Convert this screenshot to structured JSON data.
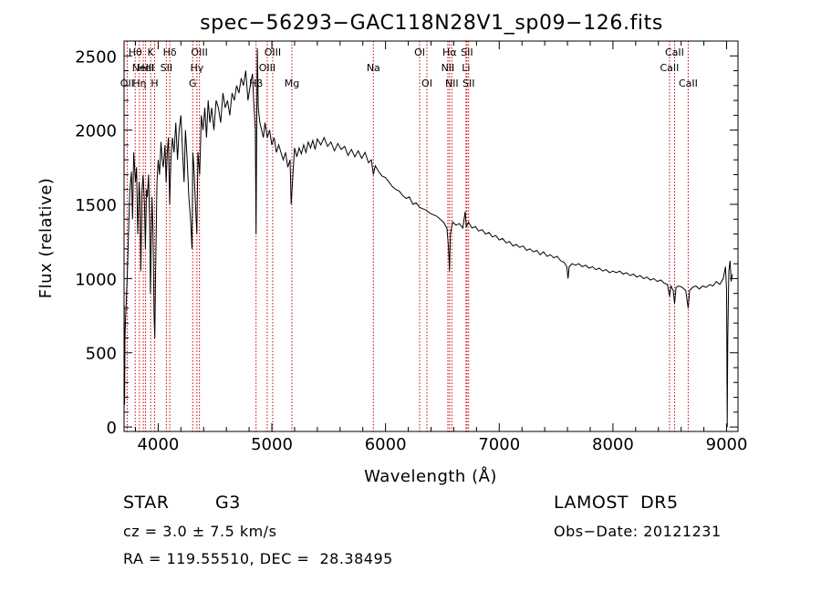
{
  "chart_data": {
    "type": "line",
    "title": "spec−56293−GAC118N28V1_sp09−126.fits",
    "xlabel": "Wavelength (Å)",
    "ylabel": "Flux (relative)",
    "xlim": [
      3700,
      9100
    ],
    "ylim": [
      -30,
      2600
    ],
    "xticks": [
      4000,
      5000,
      6000,
      7000,
      8000,
      9000
    ],
    "yticks": [
      0,
      500,
      1000,
      1500,
      2000,
      2500
    ],
    "grid": false,
    "series": [
      {
        "values": [
          [
            3700,
            0
          ],
          [
            3702,
            820
          ],
          [
            3705,
            150
          ],
          [
            3708,
            600
          ],
          [
            3712,
            700
          ],
          [
            3730,
            1050
          ],
          [
            3750,
            1580
          ],
          [
            3765,
            1720
          ],
          [
            3775,
            1400
          ],
          [
            3785,
            1850
          ],
          [
            3800,
            1650
          ],
          [
            3810,
            1750
          ],
          [
            3820,
            1300
          ],
          [
            3832,
            1650
          ],
          [
            3840,
            1550
          ],
          [
            3848,
            1050
          ],
          [
            3858,
            1600
          ],
          [
            3868,
            1700
          ],
          [
            3880,
            1500
          ],
          [
            3888,
            1200
          ],
          [
            3897,
            1600
          ],
          [
            3905,
            1550
          ],
          [
            3915,
            1700
          ],
          [
            3925,
            1400
          ],
          [
            3932,
            900
          ],
          [
            3938,
            1200
          ],
          [
            3946,
            1550
          ],
          [
            3955,
            1300
          ],
          [
            3964,
            750
          ],
          [
            3970,
            600
          ],
          [
            3978,
            1050
          ],
          [
            3990,
            1650
          ],
          [
            4000,
            1800
          ],
          [
            4012,
            1700
          ],
          [
            4025,
            1920
          ],
          [
            4035,
            1800
          ],
          [
            4045,
            1750
          ],
          [
            4060,
            1900
          ],
          [
            4070,
            1650
          ],
          [
            4080,
            1850
          ],
          [
            4090,
            1950
          ],
          [
            4101,
            1500
          ],
          [
            4112,
            1800
          ],
          [
            4125,
            1950
          ],
          [
            4140,
            1850
          ],
          [
            4155,
            2050
          ],
          [
            4170,
            1800
          ],
          [
            4185,
            2000
          ],
          [
            4200,
            2100
          ],
          [
            4215,
            1850
          ],
          [
            4228,
            1650
          ],
          [
            4240,
            2000
          ],
          [
            4255,
            1800
          ],
          [
            4270,
            1550
          ],
          [
            4285,
            1400
          ],
          [
            4298,
            1200
          ],
          [
            4305,
            1850
          ],
          [
            4315,
            1750
          ],
          [
            4325,
            1550
          ],
          [
            4340,
            1300
          ],
          [
            4350,
            1850
          ],
          [
            4365,
            1700
          ],
          [
            4380,
            2100
          ],
          [
            4395,
            2000
          ],
          [
            4410,
            2150
          ],
          [
            4425,
            1950
          ],
          [
            4440,
            2200
          ],
          [
            4455,
            2050
          ],
          [
            4470,
            2150
          ],
          [
            4490,
            2000
          ],
          [
            4510,
            2200
          ],
          [
            4530,
            2150
          ],
          [
            4550,
            2050
          ],
          [
            4570,
            2250
          ],
          [
            4590,
            2150
          ],
          [
            4610,
            2200
          ],
          [
            4630,
            2100
          ],
          [
            4650,
            2250
          ],
          [
            4670,
            2200
          ],
          [
            4690,
            2300
          ],
          [
            4710,
            2250
          ],
          [
            4730,
            2350
          ],
          [
            4750,
            2300
          ],
          [
            4770,
            2400
          ],
          [
            4790,
            2200
          ],
          [
            4810,
            2300
          ],
          [
            4830,
            2380
          ],
          [
            4840,
            2200
          ],
          [
            4855,
            2000
          ],
          [
            4861,
            1300
          ],
          [
            4866,
            1900
          ],
          [
            4872,
            2550
          ],
          [
            4880,
            2150
          ],
          [
            4895,
            2050
          ],
          [
            4910,
            2000
          ],
          [
            4925,
            1950
          ],
          [
            4940,
            2050
          ],
          [
            4960,
            1950
          ],
          [
            4980,
            2000
          ],
          [
            5000,
            1900
          ],
          [
            5020,
            1950
          ],
          [
            5040,
            1850
          ],
          [
            5060,
            1900
          ],
          [
            5080,
            1850
          ],
          [
            5100,
            1800
          ],
          [
            5120,
            1850
          ],
          [
            5140,
            1750
          ],
          [
            5160,
            1800
          ],
          [
            5170,
            1500
          ],
          [
            5178,
            1600
          ],
          [
            5185,
            1700
          ],
          [
            5200,
            1880
          ],
          [
            5220,
            1820
          ],
          [
            5240,
            1880
          ],
          [
            5260,
            1840
          ],
          [
            5280,
            1900
          ],
          [
            5300,
            1850
          ],
          [
            5320,
            1920
          ],
          [
            5340,
            1880
          ],
          [
            5360,
            1930
          ],
          [
            5380,
            1870
          ],
          [
            5400,
            1940
          ],
          [
            5430,
            1900
          ],
          [
            5460,
            1950
          ],
          [
            5490,
            1890
          ],
          [
            5520,
            1920
          ],
          [
            5550,
            1860
          ],
          [
            5580,
            1910
          ],
          [
            5610,
            1870
          ],
          [
            5640,
            1890
          ],
          [
            5670,
            1830
          ],
          [
            5700,
            1870
          ],
          [
            5730,
            1820
          ],
          [
            5760,
            1860
          ],
          [
            5790,
            1810
          ],
          [
            5820,
            1850
          ],
          [
            5850,
            1780
          ],
          [
            5875,
            1800
          ],
          [
            5893,
            1700
          ],
          [
            5910,
            1760
          ],
          [
            5940,
            1720
          ],
          [
            5970,
            1690
          ],
          [
            6000,
            1680
          ],
          [
            6030,
            1650
          ],
          [
            6060,
            1620
          ],
          [
            6090,
            1600
          ],
          [
            6120,
            1590
          ],
          [
            6150,
            1560
          ],
          [
            6180,
            1540
          ],
          [
            6210,
            1550
          ],
          [
            6240,
            1500
          ],
          [
            6270,
            1510
          ],
          [
            6300,
            1480
          ],
          [
            6330,
            1470
          ],
          [
            6360,
            1460
          ],
          [
            6390,
            1440
          ],
          [
            6420,
            1430
          ],
          [
            6450,
            1420
          ],
          [
            6480,
            1400
          ],
          [
            6510,
            1380
          ],
          [
            6540,
            1340
          ],
          [
            6555,
            1200
          ],
          [
            6563,
            1050
          ],
          [
            6570,
            1300
          ],
          [
            6590,
            1380
          ],
          [
            6620,
            1360
          ],
          [
            6650,
            1370
          ],
          [
            6680,
            1340
          ],
          [
            6700,
            1450
          ],
          [
            6710,
            1350
          ],
          [
            6730,
            1380
          ],
          [
            6760,
            1340
          ],
          [
            6790,
            1350
          ],
          [
            6820,
            1320
          ],
          [
            6850,
            1330
          ],
          [
            6880,
            1300
          ],
          [
            6910,
            1310
          ],
          [
            6940,
            1280
          ],
          [
            6970,
            1290
          ],
          [
            7000,
            1260
          ],
          [
            7030,
            1270
          ],
          [
            7060,
            1240
          ],
          [
            7090,
            1250
          ],
          [
            7120,
            1220
          ],
          [
            7150,
            1230
          ],
          [
            7180,
            1210
          ],
          [
            7210,
            1220
          ],
          [
            7240,
            1190
          ],
          [
            7270,
            1200
          ],
          [
            7300,
            1180
          ],
          [
            7330,
            1190
          ],
          [
            7360,
            1160
          ],
          [
            7390,
            1180
          ],
          [
            7420,
            1150
          ],
          [
            7450,
            1160
          ],
          [
            7480,
            1140
          ],
          [
            7510,
            1150
          ],
          [
            7540,
            1120
          ],
          [
            7570,
            1110
          ],
          [
            7595,
            1080
          ],
          [
            7605,
            1000
          ],
          [
            7615,
            1080
          ],
          [
            7640,
            1100
          ],
          [
            7670,
            1090
          ],
          [
            7700,
            1100
          ],
          [
            7730,
            1080
          ],
          [
            7760,
            1090
          ],
          [
            7790,
            1070
          ],
          [
            7820,
            1080
          ],
          [
            7850,
            1060
          ],
          [
            7880,
            1070
          ],
          [
            7910,
            1050
          ],
          [
            7940,
            1060
          ],
          [
            7970,
            1040
          ],
          [
            8000,
            1050
          ],
          [
            8030,
            1040
          ],
          [
            8060,
            1050
          ],
          [
            8090,
            1030
          ],
          [
            8120,
            1040
          ],
          [
            8150,
            1020
          ],
          [
            8180,
            1030
          ],
          [
            8210,
            1010
          ],
          [
            8240,
            1020
          ],
          [
            8270,
            1000
          ],
          [
            8300,
            1010
          ],
          [
            8330,
            990
          ],
          [
            8360,
            1000
          ],
          [
            8390,
            980
          ],
          [
            8420,
            990
          ],
          [
            8450,
            970
          ],
          [
            8480,
            960
          ],
          [
            8498,
            880
          ],
          [
            8510,
            950
          ],
          [
            8530,
            920
          ],
          [
            8542,
            830
          ],
          [
            8555,
            940
          ],
          [
            8580,
            950
          ],
          [
            8610,
            940
          ],
          [
            8640,
            920
          ],
          [
            8662,
            800
          ],
          [
            8675,
            920
          ],
          [
            8700,
            940
          ],
          [
            8730,
            950
          ],
          [
            8760,
            930
          ],
          [
            8790,
            950
          ],
          [
            8820,
            940
          ],
          [
            8850,
            960
          ],
          [
            8880,
            950
          ],
          [
            8910,
            980
          ],
          [
            8940,
            960
          ],
          [
            8970,
            1000
          ],
          [
            8990,
            1080
          ],
          [
            9000,
            920
          ],
          [
            9005,
            0
          ],
          [
            9010,
            600
          ],
          [
            9020,
            1050
          ],
          [
            9030,
            1120
          ],
          [
            9040,
            980
          ],
          [
            9050,
            1030
          ]
        ]
      }
    ],
    "lines": [
      {
        "x": 3727,
        "label": "OII",
        "row": 3
      },
      {
        "x": 3798,
        "label": "Hθ",
        "row": 1
      },
      {
        "x": 3835,
        "label": "Hη",
        "row": 3
      },
      {
        "x": 3869,
        "label": "NeIII",
        "row": 2
      },
      {
        "x": 3889,
        "label": "HeI",
        "row": 2
      },
      {
        "x": 3934,
        "label": "K",
        "row": 1
      },
      {
        "x": 3969,
        "label": "H",
        "row": 3
      },
      {
        "x": 4072,
        "label": "SII",
        "row": 2
      },
      {
        "x": 4102,
        "label": "Hδ",
        "row": 1
      },
      {
        "x": 4304,
        "label": "G",
        "row": 3
      },
      {
        "x": 4341,
        "label": "Hγ",
        "row": 2
      },
      {
        "x": 4363,
        "label": "OIII",
        "row": 1
      },
      {
        "x": 4861,
        "label": "Hβ",
        "row": 3
      },
      {
        "x": 4959,
        "label": "OIII",
        "row": 2
      },
      {
        "x": 5007,
        "label": "OIII",
        "row": 1
      },
      {
        "x": 5176,
        "label": "Mg",
        "row": 3
      },
      {
        "x": 5893,
        "label": "Na",
        "row": 2
      },
      {
        "x": 6300,
        "label": "OI",
        "row": 1
      },
      {
        "x": 6364,
        "label": "OI",
        "row": 3
      },
      {
        "x": 6548,
        "label": "NII",
        "row": 2
      },
      {
        "x": 6563,
        "label": "Hα",
        "row": 1
      },
      {
        "x": 6583,
        "label": "NII",
        "row": 3
      },
      {
        "x": 6708,
        "label": "Li",
        "row": 2
      },
      {
        "x": 6716,
        "label": "SII",
        "row": 1
      },
      {
        "x": 6731,
        "label": "SII",
        "row": 3
      },
      {
        "x": 8498,
        "label": "CaII",
        "row": 2
      },
      {
        "x": 8542,
        "label": "CaII",
        "row": 1
      },
      {
        "x": 8662,
        "label": "CaII",
        "row": 3
      }
    ]
  },
  "footer": {
    "object_class": "STAR",
    "subclass": "G3",
    "survey": "LAMOST  DR5",
    "cz": "cz = 3.0 ± 7.5 km/s",
    "obs_date": "Obs−Date: 20121231",
    "coords": "RA = 119.55510, DEC =  28.38495"
  },
  "colors": {
    "spectrum": "#000000",
    "line_marker": "#cc0000"
  }
}
